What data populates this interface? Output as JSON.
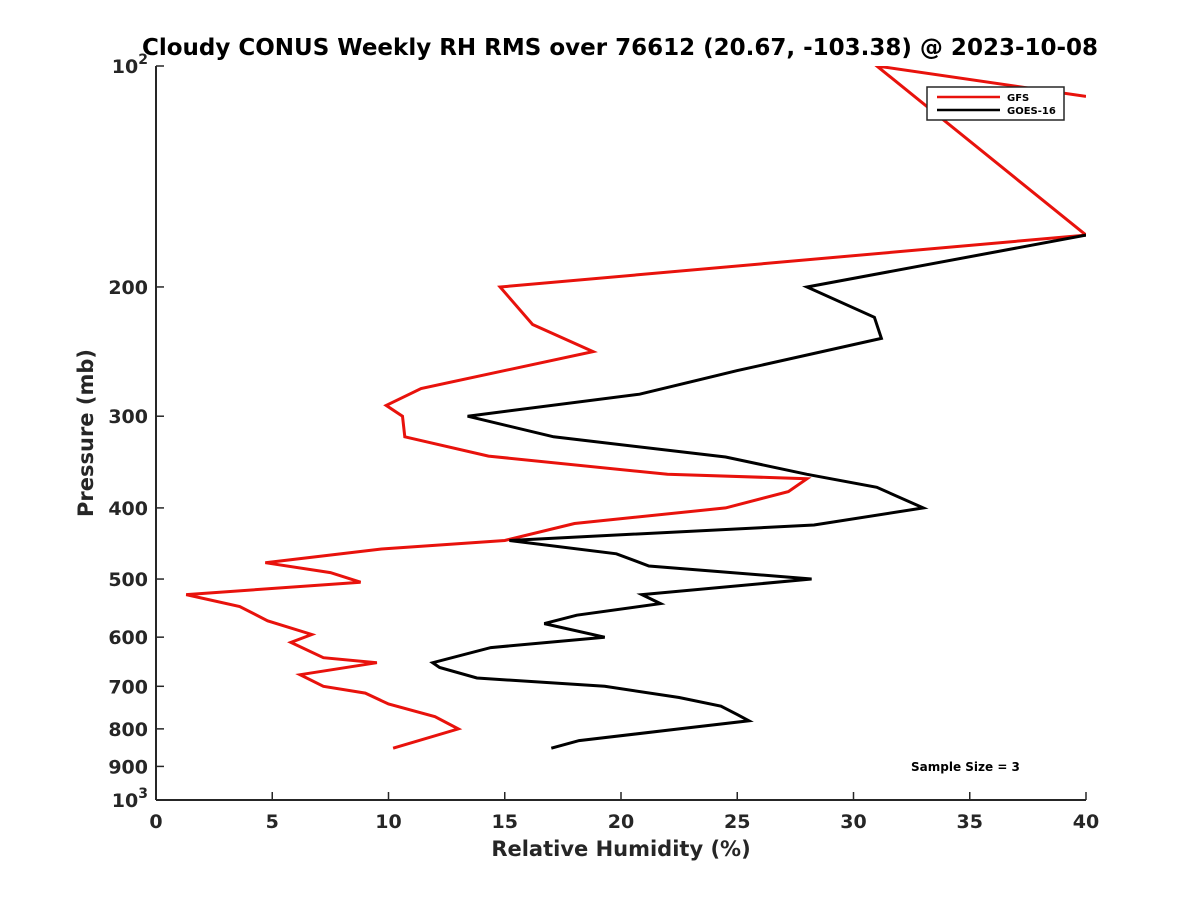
{
  "chart_data": {
    "type": "line",
    "title": "Cloudy CONUS Weekly RH RMS over 76612 (20.67, -103.38) @ 2023-10-08",
    "xlabel": "Relative Humidity (%)",
    "ylabel": "Pressure (mb)",
    "xlim": [
      0,
      40
    ],
    "ylim": [
      100,
      1000
    ],
    "yscale": "log",
    "y_reversed": true,
    "x_ticks": [
      0,
      5,
      10,
      15,
      20,
      25,
      30,
      35,
      40
    ],
    "x_tick_labels": [
      "0",
      "5",
      "10",
      "15",
      "20",
      "25",
      "30",
      "35",
      "40"
    ],
    "y_ticks": [
      100,
      200,
      300,
      400,
      500,
      600,
      700,
      800,
      900,
      1000
    ],
    "y_tick_labels": [
      {
        "base": "10",
        "exp": "2"
      },
      {
        "base": "200",
        "exp": ""
      },
      {
        "base": "300",
        "exp": ""
      },
      {
        "base": "400",
        "exp": ""
      },
      {
        "base": "500",
        "exp": ""
      },
      {
        "base": "600",
        "exp": ""
      },
      {
        "base": "700",
        "exp": ""
      },
      {
        "base": "800",
        "exp": ""
      },
      {
        "base": "900",
        "exp": ""
      },
      {
        "base": "10",
        "exp": "3"
      }
    ],
    "legend_position": "top-right",
    "annotation": "Sample Size = 3",
    "series": [
      {
        "name": "GFS",
        "color": "#e8120c",
        "points": [
          [
            10.2,
            850
          ],
          [
            13.0,
            800
          ],
          [
            12.0,
            770
          ],
          [
            10.0,
            740
          ],
          [
            9.0,
            715
          ],
          [
            7.2,
            700
          ],
          [
            6.2,
            675
          ],
          [
            9.5,
            650
          ],
          [
            7.2,
            640
          ],
          [
            5.8,
            610
          ],
          [
            6.7,
            595
          ],
          [
            4.8,
            570
          ],
          [
            3.6,
            545
          ],
          [
            1.3,
            525
          ],
          [
            8.8,
            505
          ],
          [
            7.5,
            490
          ],
          [
            4.7,
            475
          ],
          [
            9.7,
            455
          ],
          [
            15.0,
            443
          ],
          [
            18.0,
            420
          ],
          [
            24.5,
            400
          ],
          [
            27.2,
            380
          ],
          [
            28.0,
            365
          ],
          [
            22.0,
            360
          ],
          [
            14.3,
            340
          ],
          [
            10.7,
            320
          ],
          [
            10.6,
            300
          ],
          [
            9.9,
            290
          ],
          [
            11.4,
            275
          ],
          [
            18.8,
            245
          ],
          [
            16.2,
            225
          ],
          [
            14.8,
            200
          ],
          [
            40.0,
            170
          ],
          [
            31.0,
            100
          ],
          [
            40.0,
            110
          ]
        ]
      },
      {
        "name": "GOES-16",
        "color": "#000000",
        "points": [
          [
            17.0,
            850
          ],
          [
            18.2,
            830
          ],
          [
            22.5,
            800
          ],
          [
            25.5,
            780
          ],
          [
            25.0,
            765
          ],
          [
            24.3,
            745
          ],
          [
            22.5,
            725
          ],
          [
            19.3,
            700
          ],
          [
            13.8,
            682
          ],
          [
            12.2,
            660
          ],
          [
            11.9,
            650
          ],
          [
            14.4,
            620
          ],
          [
            19.3,
            600
          ],
          [
            16.7,
            575
          ],
          [
            18.1,
            560
          ],
          [
            21.7,
            540
          ],
          [
            20.9,
            525
          ],
          [
            28.2,
            500
          ],
          [
            21.2,
            480
          ],
          [
            19.8,
            462
          ],
          [
            15.2,
            443
          ],
          [
            28.3,
            422
          ],
          [
            33.0,
            400
          ],
          [
            31.0,
            375
          ],
          [
            28.0,
            360
          ],
          [
            24.5,
            341
          ],
          [
            17.1,
            320
          ],
          [
            13.4,
            300
          ],
          [
            20.8,
            280
          ],
          [
            25.0,
            260
          ],
          [
            31.2,
            235
          ],
          [
            30.9,
            220
          ],
          [
            28.0,
            200
          ],
          [
            40.0,
            170
          ]
        ]
      }
    ]
  }
}
